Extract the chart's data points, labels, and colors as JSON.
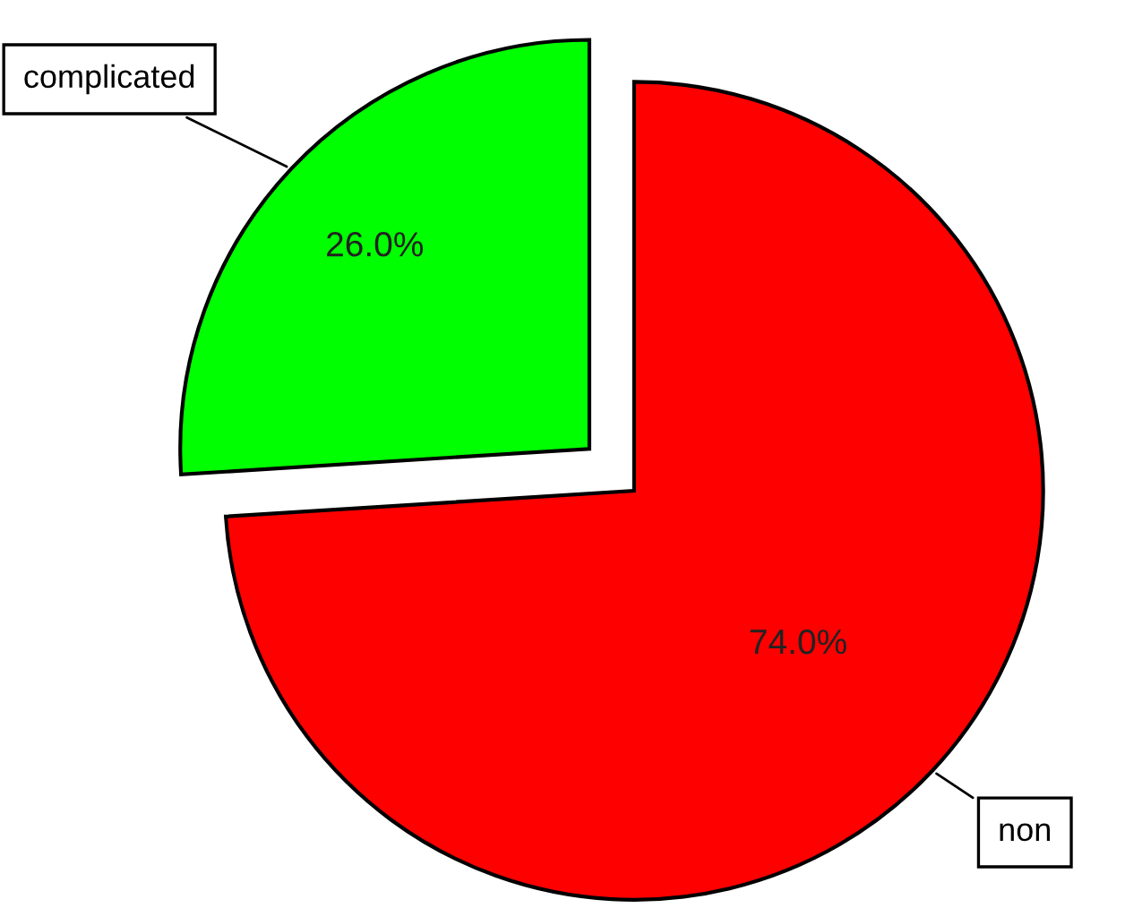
{
  "chart_data": {
    "type": "pie",
    "categories": [
      "complicated",
      "non"
    ],
    "values": [
      26.0,
      74.0
    ],
    "colors": [
      "#00ff00",
      "#ff0000"
    ],
    "value_labels": [
      "26.0%",
      "74.0%"
    ],
    "legend": false
  }
}
